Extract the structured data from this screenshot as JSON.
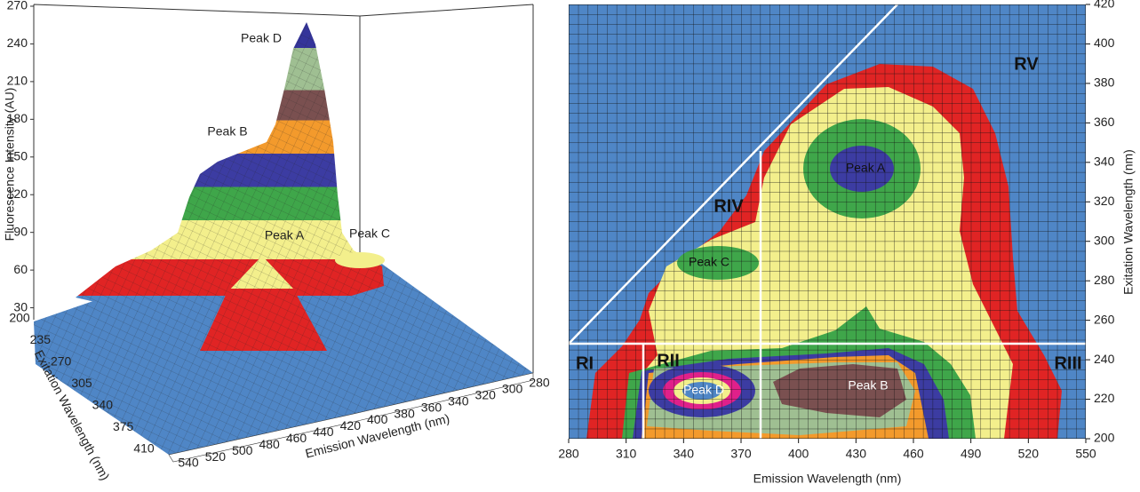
{
  "chart_data": [
    {
      "type": "surface3d",
      "zlabel": "Fluorescence Intensity (AU)",
      "xlabel": "Emission Wavelength (nm)",
      "ylabel": "Exitation Wavelength (nm)",
      "zlim": [
        0,
        270
      ],
      "zticks": [
        30,
        60,
        90,
        120,
        150,
        180,
        210,
        240,
        270
      ],
      "xlim": [
        540,
        280
      ],
      "xticks": [
        540,
        520,
        500,
        480,
        460,
        440,
        420,
        400,
        380,
        360,
        340,
        320,
        300,
        280
      ],
      "ylim": [
        200,
        410
      ],
      "yticks": [
        200,
        235,
        270,
        305,
        340,
        375,
        410
      ],
      "annotations": [
        "Peak D",
        "Peak B",
        "Peak A",
        "Peak C"
      ]
    },
    {
      "type": "contour",
      "xlabel": "Emission Wavelength (nm)",
      "ylabel": "Exitation Wavelength (nm)",
      "xlim": [
        280,
        550
      ],
      "xticks": [
        280,
        310,
        340,
        370,
        400,
        430,
        460,
        490,
        520,
        550
      ],
      "ylim": [
        200,
        420
      ],
      "yticks": [
        200,
        220,
        240,
        260,
        280,
        300,
        320,
        340,
        360,
        380,
        400,
        420
      ],
      "regions": [
        "RV",
        "RIV",
        "RI",
        "RII",
        "RIII"
      ],
      "annotations": [
        "Peak A",
        "Peak C",
        "Peak D",
        "Peak B"
      ]
    }
  ]
}
